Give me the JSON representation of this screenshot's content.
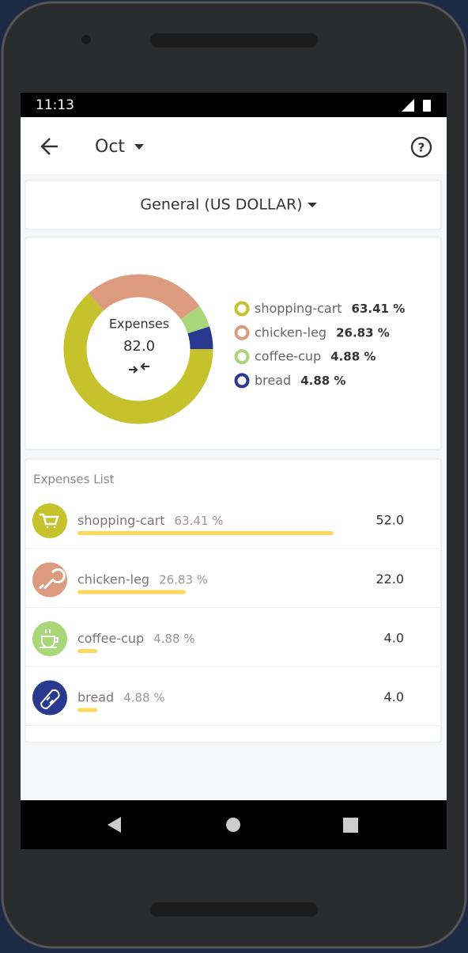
{
  "status_bar": {
    "time": "11:13"
  },
  "header": {
    "title": "Oct"
  },
  "account_selector": "General (US DOLLAR)",
  "chart_data": {
    "type": "pie",
    "donut": true,
    "center_title": "Expenses",
    "center_value": "82.0",
    "categories": [
      "shopping-cart",
      "chicken-leg",
      "coffee-cup",
      "bread"
    ],
    "values": [
      63.41,
      26.83,
      4.88,
      4.88
    ],
    "value_labels": [
      "63.41 %",
      "26.83 %",
      "4.88 %",
      "4.88 %"
    ],
    "colors": [
      "#c6c22c",
      "#dc9a7f",
      "#a8d679",
      "#2a3990"
    ]
  },
  "expenses_list": {
    "title": "Expenses List",
    "amounts": [
      "52.0",
      "22.0",
      "4.0",
      "4.0"
    ],
    "bar_color": "#fdd85a"
  }
}
